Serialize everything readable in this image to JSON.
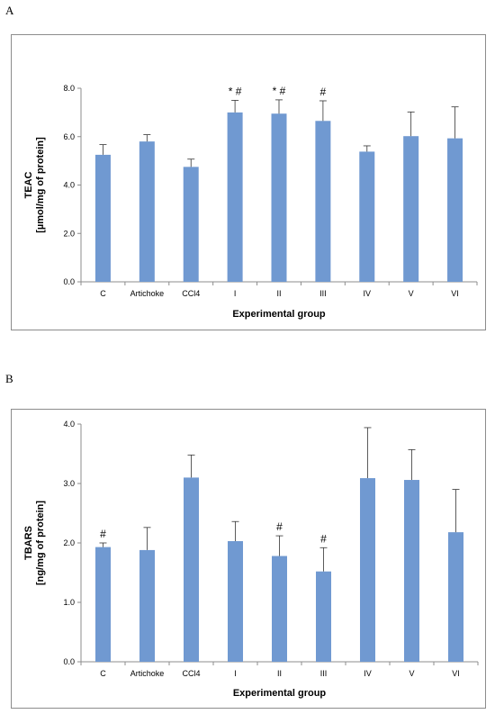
{
  "panels": {
    "a_label": "A",
    "b_label": "B"
  },
  "chart_data": [
    {
      "type": "bar",
      "categories": [
        "C",
        "Artichoke",
        "CCl4",
        "I",
        "II",
        "III",
        "IV",
        "V",
        "VI"
      ],
      "values": [
        5.25,
        5.8,
        4.75,
        7.0,
        6.95,
        6.65,
        5.38,
        6.02,
        5.93
      ],
      "errors": [
        0.42,
        0.28,
        0.32,
        0.5,
        0.57,
        0.83,
        0.24,
        1.0,
        1.3
      ],
      "annotations": [
        "",
        "",
        "",
        "* #",
        "* #",
        "#",
        "",
        "",
        ""
      ],
      "title": "",
      "xlabel": "Experimental group",
      "ylabel_lines": [
        "TEAC",
        "[µmol/mg of protein]"
      ],
      "ylim": [
        0,
        8
      ],
      "yticks": [
        "0.0",
        "2.0",
        "4.0",
        "6.0",
        "8.0"
      ],
      "bar_color": "#7099d1",
      "grid": false,
      "legend": "none"
    },
    {
      "type": "bar",
      "categories": [
        "C",
        "Artichoke",
        "CCl4",
        "I",
        "II",
        "III",
        "IV",
        "V",
        "VI"
      ],
      "values": [
        1.93,
        1.88,
        3.1,
        2.03,
        1.78,
        1.52,
        3.09,
        3.06,
        2.18
      ],
      "errors": [
        0.07,
        0.38,
        0.38,
        0.33,
        0.34,
        0.4,
        0.85,
        0.51,
        0.72
      ],
      "annotations": [
        "#",
        "",
        "",
        "",
        "#",
        "#",
        "",
        "",
        ""
      ],
      "title": "",
      "xlabel": "Experimental group",
      "ylabel_lines": [
        "TBARS",
        "[ng/mg of protein]"
      ],
      "ylim": [
        0,
        4
      ],
      "yticks": [
        "0.0",
        "1.0",
        "2.0",
        "3.0",
        "4.0"
      ],
      "bar_color": "#7099d1",
      "grid": false,
      "legend": "none"
    }
  ]
}
